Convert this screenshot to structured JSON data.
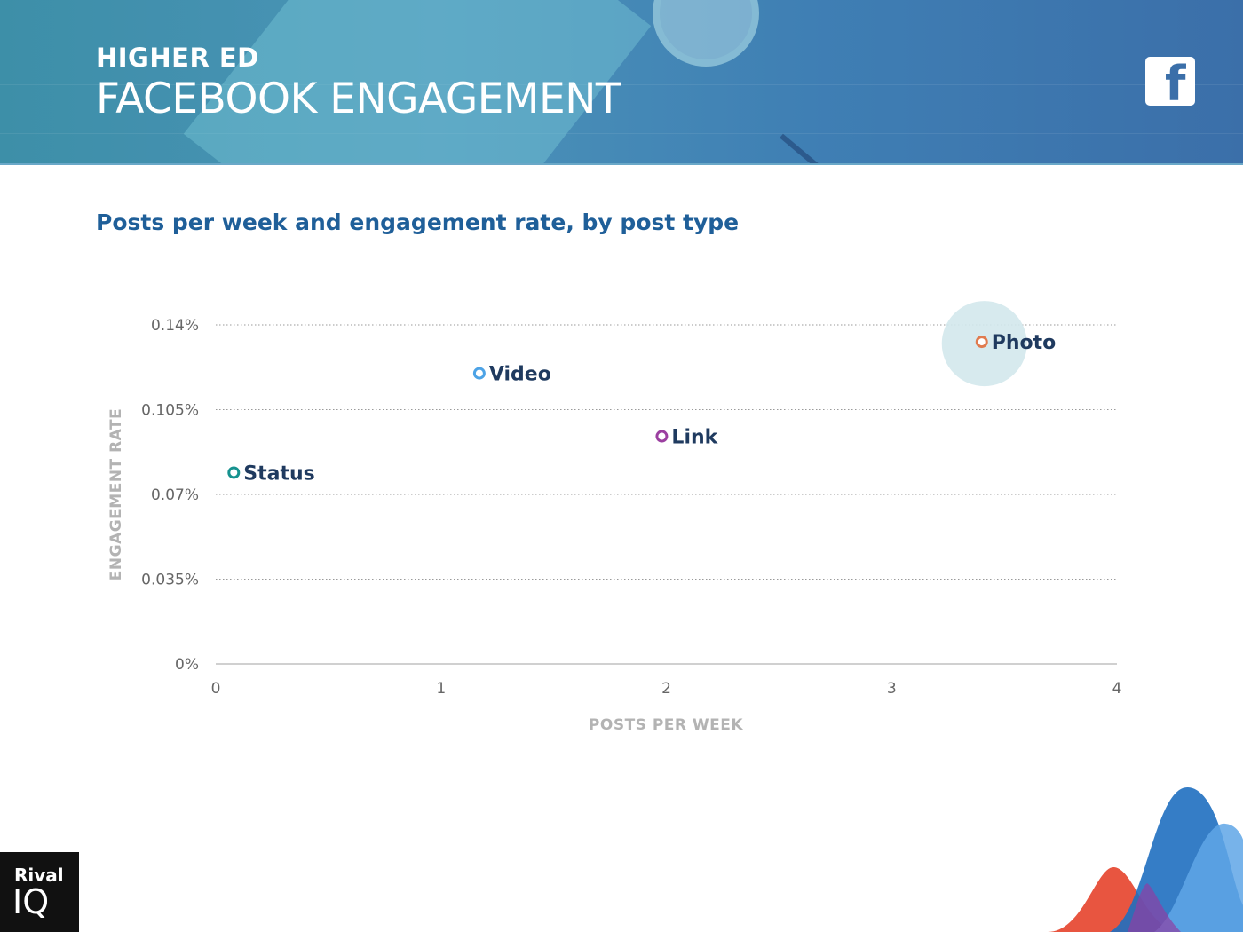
{
  "header": {
    "kicker": "HIGHER ED",
    "title": "FACEBOOK ENGAGEMENT",
    "icon": "facebook-icon"
  },
  "subtitle": "Posts per week and engagement rate, by post type",
  "chart_data": {
    "type": "scatter",
    "title": "Posts per week and engagement rate, by post type",
    "xlabel": "POSTS PER WEEK",
    "ylabel": "ENGAGEMENT RATE",
    "xlim": [
      0,
      4
    ],
    "ylim": [
      0,
      0.14
    ],
    "x_ticks": [
      0,
      1,
      2,
      3,
      4
    ],
    "x_tick_labels": [
      "0",
      "1",
      "2",
      "3",
      "4"
    ],
    "y_ticks": [
      0,
      0.035,
      0.07,
      0.105,
      0.14
    ],
    "y_tick_labels": [
      "0%",
      "0.035%",
      "0.07%",
      "0.105%",
      "0.14%"
    ],
    "grid": "horizontal dotted",
    "points": [
      {
        "name": "Photo",
        "x": 3.4,
        "y": 0.133,
        "color": "#e07b4f",
        "highlight": true
      },
      {
        "name": "Video",
        "x": 1.17,
        "y": 0.12,
        "color": "#4da3e6"
      },
      {
        "name": "Link",
        "x": 1.98,
        "y": 0.094,
        "color": "#9b3fa0"
      },
      {
        "name": "Status",
        "x": 0.08,
        "y": 0.079,
        "color": "#16928f"
      }
    ],
    "highlight_color": "#d3e8ec"
  },
  "brand": {
    "line1": "Rival",
    "line2": "IQ"
  },
  "colors": {
    "banner": "#4b93b8",
    "subtitle": "#1f5f99",
    "label": "#1f3a5f"
  }
}
